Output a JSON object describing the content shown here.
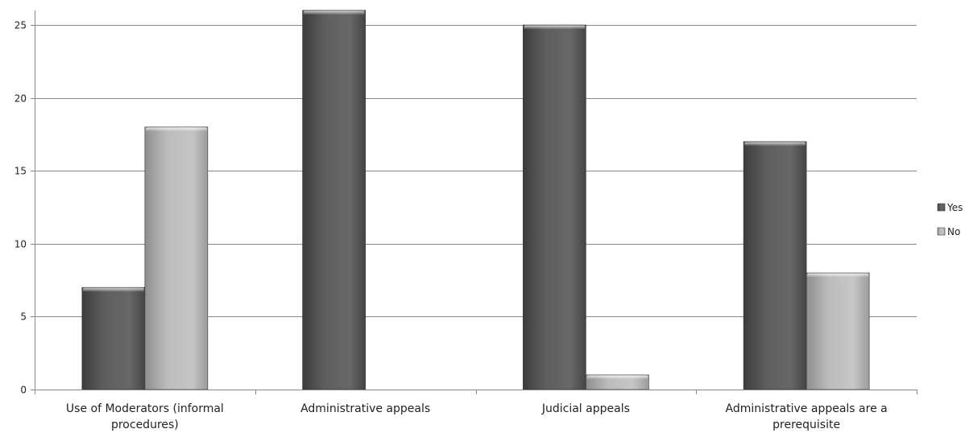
{
  "chart_data": {
    "type": "bar",
    "title": "",
    "xlabel": "",
    "ylabel": "",
    "categories": [
      [
        "Use of Moderators (informal",
        "procedures)"
      ],
      [
        "Administrative appeals"
      ],
      [
        "Judicial appeals"
      ],
      [
        "Administrative appeals are a",
        "prerequisite"
      ]
    ],
    "series": [
      {
        "name": "Yes",
        "values": [
          7,
          26,
          25,
          17
        ],
        "color": "#555555"
      },
      {
        "name": "No",
        "values": [
          18,
          0,
          1,
          8
        ],
        "color": "#b3b3b3"
      }
    ],
    "ylim": [
      0,
      25
    ],
    "yticks": [
      0,
      5,
      10,
      15,
      20,
      25
    ],
    "grid": true,
    "legend_position": "right"
  }
}
